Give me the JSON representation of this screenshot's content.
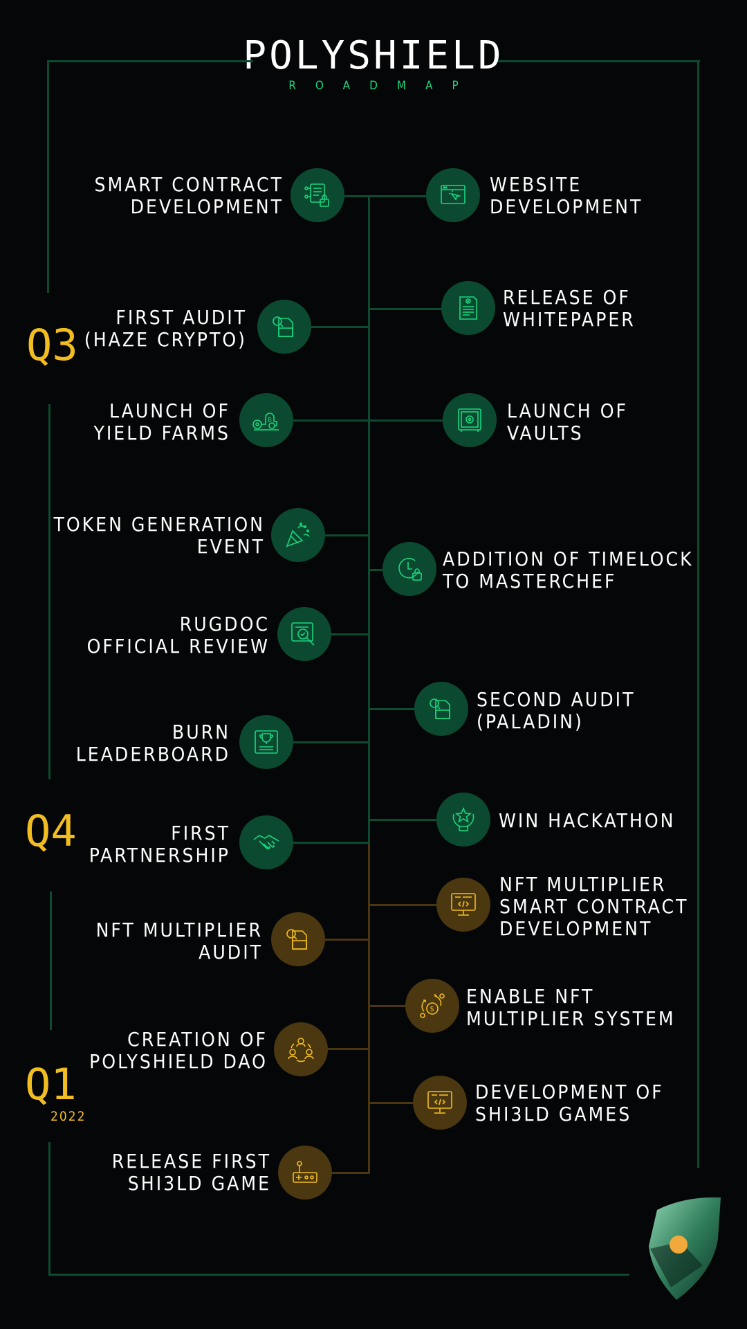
{
  "header": {
    "title": "POLYSHIELD",
    "subtitle": "ROADMAP"
  },
  "quarters": {
    "q3": "Q3",
    "q4": "Q4",
    "q1": "Q1",
    "q1_year": "2022"
  },
  "colors": {
    "green_accent": "#1ad67f",
    "green_node": "#0b4a30",
    "gold_accent": "#f2bd21",
    "gold_node": "#4b3710"
  },
  "items": [
    {
      "text": "SMART CONTRACT\nDEVELOPMENT",
      "icon": "contract-icon"
    },
    {
      "text": "WEBSITE\nDEVELOPMENT",
      "icon": "website-icon"
    },
    {
      "text": "RELEASE OF\nWHITEPAPER",
      "icon": "document-icon"
    },
    {
      "text": "FIRST AUDIT\n(HAZE CRYPTO)",
      "icon": "audit-icon"
    },
    {
      "text": "LAUNCH OF\nYIELD FARMS",
      "icon": "farm-icon"
    },
    {
      "text": "LAUNCH OF\nVAULTS",
      "icon": "vault-icon"
    },
    {
      "text": "TOKEN GENERATION\nEVENT",
      "icon": "party-icon"
    },
    {
      "text": "ADDITION OF TIMELOCK\nTO MASTERCHEF",
      "icon": "timelock-icon"
    },
    {
      "text": "RUGDOC\nOFFICIAL REVIEW",
      "icon": "review-icon"
    },
    {
      "text": "SECOND AUDIT\n(PALADIN)",
      "icon": "audit-icon"
    },
    {
      "text": "BURN\nLEADERBOARD",
      "icon": "trophy-icon"
    },
    {
      "text": "WIN HACKATHON",
      "icon": "award-icon"
    },
    {
      "text": "FIRST\nPARTNERSHIP",
      "icon": "handshake-icon"
    },
    {
      "text": "NFT MULTIPLIER\nSMART CONTRACT\nDEVELOPMENT",
      "icon": "code-monitor-icon"
    },
    {
      "text": "NFT MULTIPLIER\nAUDIT",
      "icon": "audit-icon"
    },
    {
      "text": "ENABLE NFT\nMULTIPLIER SYSTEM",
      "icon": "money-growth-icon"
    },
    {
      "text": "CREATION OF\nPOLYSHIELD DAO",
      "icon": "community-icon"
    },
    {
      "text": "DEVELOPMENT OF\nSHI3LD GAMES",
      "icon": "code-monitor-icon"
    },
    {
      "text": "RELEASE FIRST\nSHI3LD GAME",
      "icon": "joystick-icon"
    }
  ]
}
